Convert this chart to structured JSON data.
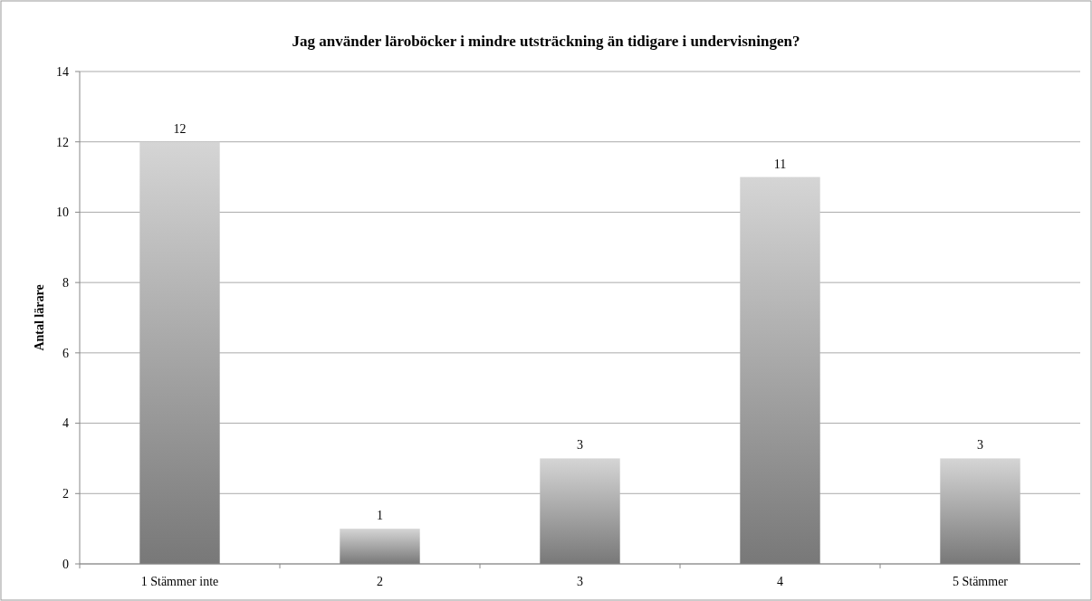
{
  "chart_data": {
    "type": "bar",
    "title": "Jag använder läroböcker i mindre utsträckning än tidigare i undervisningen?",
    "ylabel": "Antal lärare",
    "categories": [
      "1 Stämmer inte",
      "2",
      "3",
      "4",
      "5 Stämmer"
    ],
    "values": [
      12,
      1,
      3,
      11,
      3
    ],
    "color": "#a0a0a0",
    "ylim": [
      0,
      14
    ],
    "yticks": [
      0,
      2,
      4,
      6,
      8,
      10,
      12,
      14
    ],
    "grid": "y",
    "data_labels": true
  }
}
